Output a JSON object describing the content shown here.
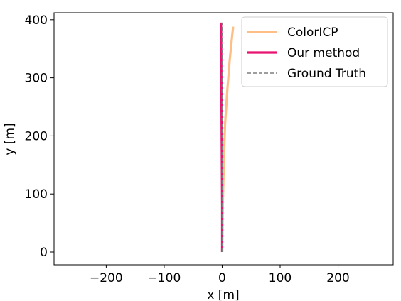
{
  "chart_data": {
    "type": "line",
    "xlabel": "x [m]",
    "ylabel": "y [m]",
    "xlim": [
      -290,
      295
    ],
    "ylim": [
      -22,
      412
    ],
    "xticks": [
      -200,
      -100,
      0,
      100,
      200
    ],
    "yticks": [
      0,
      100,
      200,
      300,
      400
    ],
    "xtick_labels": [
      "−200",
      "−100",
      "0",
      "100",
      "200"
    ],
    "ytick_labels": [
      "0",
      "100",
      "200",
      "300",
      "400"
    ],
    "grid": false,
    "legend_position": "top-right",
    "series": [
      {
        "name": "ColorICP",
        "color": "#fdbf86",
        "style": "solid",
        "x": [
          0,
          0.5,
          1,
          2,
          3,
          4,
          5,
          7,
          9,
          11,
          13,
          15,
          17,
          19
        ],
        "y": [
          0,
          40,
          80,
          120,
          160,
          190,
          220,
          250,
          280,
          305,
          330,
          350,
          370,
          388
        ]
      },
      {
        "name": "Our method",
        "color": "#e7136f",
        "style": "solid",
        "x": [
          0,
          0,
          -0.5,
          -1,
          -1.5,
          -2
        ],
        "y": [
          0,
          80,
          160,
          240,
          320,
          395
        ]
      },
      {
        "name": "Ground Truth",
        "color": "#7f7f7f",
        "style": "dashed",
        "x": [
          0,
          0,
          0,
          0,
          0
        ],
        "y": [
          0,
          100,
          200,
          300,
          395
        ]
      }
    ]
  }
}
